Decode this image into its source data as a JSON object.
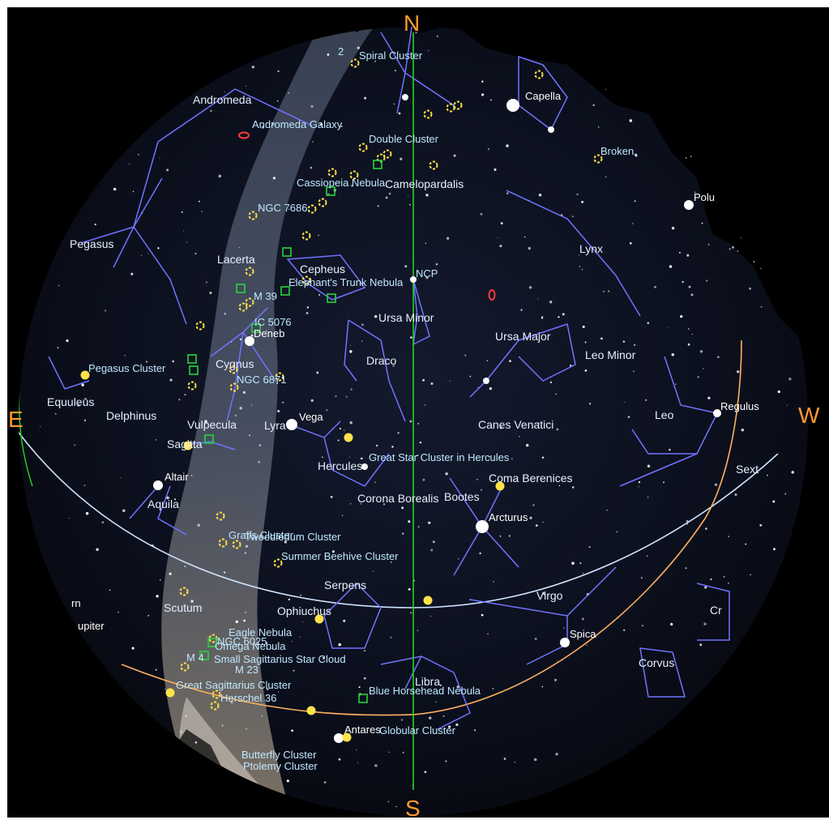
{
  "compass": {
    "north": "N",
    "south": "S",
    "east": "E",
    "west": "W"
  },
  "constellations": [
    "Andromeda",
    "Pegasus",
    "Lacerta",
    "Cepheus",
    "Cygnus",
    "Equuleus",
    "Delphinus",
    "Vulpecula",
    "Sagitta",
    "Lyra",
    "Aquila",
    "Scutum",
    "Ophiuchus",
    "Serpens",
    "Hercules",
    "Corona Borealis",
    "Bootes",
    "Draco",
    "Ursa Minor",
    "Ursa Major",
    "Lynx",
    "Leo Minor",
    "Leo",
    "Canes Venatici",
    "Coma Berenices",
    "Virgo",
    "Libra",
    "Corvus",
    "Camelopardalis",
    "Sext",
    "Cr"
  ],
  "stars": [
    "Capella",
    "Deneb",
    "Vega",
    "Altair",
    "Arcturus",
    "Regulus",
    "Spica",
    "Antares",
    "Polu",
    "upiter",
    "rn"
  ],
  "deep_sky": [
    "Andromeda Galaxy",
    "Double Cluster",
    "Spiral Cluster",
    "Cassiopeia Nebula",
    "NGC 7686",
    "Elephant's Trunk Nebula",
    "M 39",
    "IC 5076",
    "NGC 6871",
    "Pegasus Cluster",
    "Great Star Cluster in Hercules",
    "Graffs Cluster",
    "Tweedledum Cluster",
    "Summer Beehive Cluster",
    "Eagle Nebula",
    "Omega Nebula",
    "Small Sagittarius Star Cloud",
    "M 23",
    "Great Sagittarius Cluster",
    "Herschel 36",
    "Blue Horsehead Nebula",
    "Globular Cluster",
    "Butterfly Cluster",
    "Ptolemy Cluster",
    "NGC 6025",
    "Broken",
    "M 4",
    "2"
  ],
  "markers": {
    "ncp": "NCP"
  },
  "colors": {
    "sky": "#0b0d17",
    "constellation_lines": "#6f74ff",
    "labels": "#e6f0ff",
    "dso_labels": "#bfe8ff",
    "compass": "#ff9a2e",
    "meridian": "#1ed81e",
    "equator": "#cfe4ff",
    "ecliptic": "#ffb060",
    "cluster_marker": "#ffe24a",
    "nebula_marker": "#27d43a",
    "galaxy_marker": "#ff3a3a"
  }
}
